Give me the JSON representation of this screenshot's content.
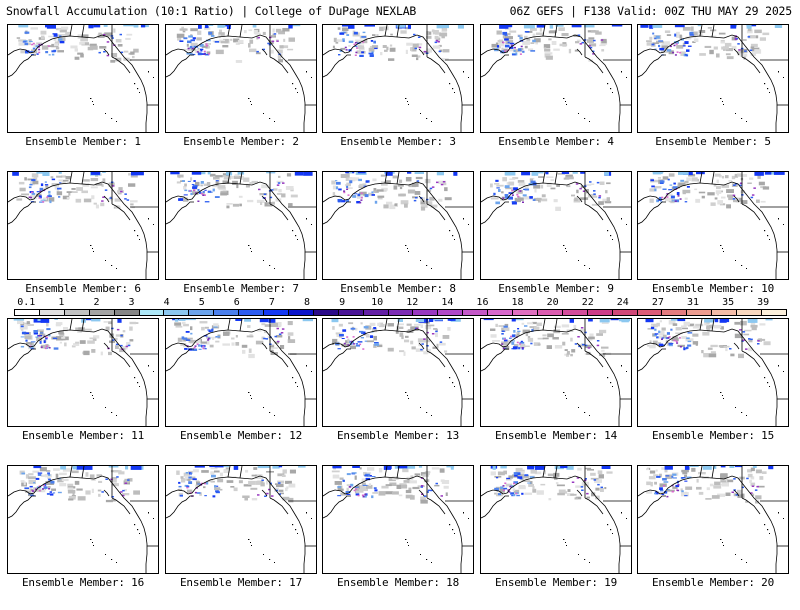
{
  "header": {
    "title": "Snowfall Accumulation (10:1 Ratio) | College of DuPage NEXLAB",
    "run_info": "06Z GEFS | F138 Valid: 00Z THU MAY 29 2025"
  },
  "panels": [
    {
      "caption": "Ensemble Member: 1"
    },
    {
      "caption": "Ensemble Member: 2"
    },
    {
      "caption": "Ensemble Member: 3"
    },
    {
      "caption": "Ensemble Member: 4"
    },
    {
      "caption": "Ensemble Member: 5"
    },
    {
      "caption": "Ensemble Member: 6"
    },
    {
      "caption": "Ensemble Member: 7"
    },
    {
      "caption": "Ensemble Member: 8"
    },
    {
      "caption": "Ensemble Member: 9"
    },
    {
      "caption": "Ensemble Member: 10"
    },
    {
      "caption": "Ensemble Member: 11"
    },
    {
      "caption": "Ensemble Member: 12"
    },
    {
      "caption": "Ensemble Member: 13"
    },
    {
      "caption": "Ensemble Member: 14"
    },
    {
      "caption": "Ensemble Member: 15"
    },
    {
      "caption": "Ensemble Member: 16"
    },
    {
      "caption": "Ensemble Member: 17"
    },
    {
      "caption": "Ensemble Member: 18"
    },
    {
      "caption": "Ensemble Member: 19"
    },
    {
      "caption": "Ensemble Member: 20"
    }
  ],
  "colorbar": {
    "labels": [
      "0.1",
      "1",
      "2",
      "3",
      "4",
      "5",
      "6",
      "7",
      "8",
      "9",
      "10",
      "12",
      "14",
      "16",
      "18",
      "20",
      "22",
      "24",
      "27",
      "31",
      "35",
      "39"
    ],
    "colors": [
      "#ffffff",
      "#e0e0e0",
      "#c2c2c2",
      "#a4a4a4",
      "#868686",
      "#aee8f8",
      "#8cc8f0",
      "#6ca4ec",
      "#4c80ec",
      "#2c5cf0",
      "#1438f4",
      "#0a14cc",
      "#2a0a88",
      "#4a1496",
      "#6420a6",
      "#7c2cb4",
      "#9838c0",
      "#b048c8",
      "#c458c8",
      "#d868cc",
      "#e070c0",
      "#dc5cb0",
      "#d44c9c",
      "#cc3c88",
      "#d04878",
      "#dc5c78",
      "#e47c80",
      "#ec9c90",
      "#f4bca8",
      "#f8d8c0",
      "#fcf0dc"
    ]
  }
}
